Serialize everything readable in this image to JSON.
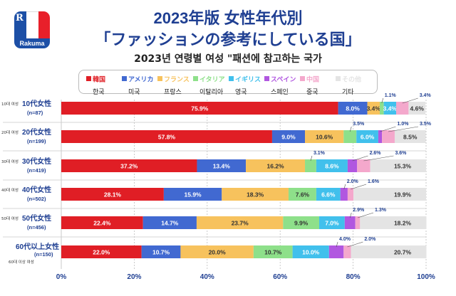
{
  "brand": {
    "logo_letter": "R",
    "name": "Rakuma"
  },
  "title_line1": "2023年版 女性年代別",
  "title_line2": "「ファッションの参考にしている国」",
  "title_korean": "2023년 연령별 여성 \"패션에 참고하는 국가",
  "colors": {
    "korea": "#e01e25",
    "usa": "#4169d1",
    "france": "#f7c25d",
    "italy": "#8ee08a",
    "uk": "#41c0ec",
    "spain": "#b157e0",
    "china": "#f4a8cc",
    "other": "#e4e4e4"
  },
  "chart_data": {
    "type": "bar",
    "orientation": "horizontal",
    "stacked": true,
    "xlim": [
      0,
      100
    ],
    "xticks": [
      "0%",
      "20%",
      "40%",
      "60%",
      "80%",
      "100%"
    ],
    "categories": [
      {
        "label": "10代女性",
        "n": "(n=87)",
        "korean": "10대 여성"
      },
      {
        "label": "20代女性",
        "n": "(n=199)",
        "korean": "20대 여성"
      },
      {
        "label": "30代女性",
        "n": "(n=419)",
        "korean": "30대 여성"
      },
      {
        "label": "40代女性",
        "n": "(n=502)",
        "korean": "40대 여성"
      },
      {
        "label": "50代女性",
        "n": "(n=456)",
        "korean": "50대 여성"
      },
      {
        "label": "60代以上女性",
        "n": "(n=150)",
        "korean": "60대 이상 여성"
      }
    ],
    "series": [
      {
        "key": "korea",
        "name": "韓国",
        "korean": "한국",
        "values": [
          75.9,
          57.8,
          37.2,
          28.1,
          22.4,
          22.0
        ],
        "labels": [
          "75.9%",
          "57.8%",
          "37.2%",
          "28.1%",
          "22.4%",
          "22.0%"
        ]
      },
      {
        "key": "usa",
        "name": "アメリカ",
        "korean": "미국",
        "values": [
          8.0,
          9.0,
          13.4,
          15.9,
          14.7,
          10.7
        ],
        "labels": [
          "8.0%",
          "9.0%",
          "13.4%",
          "15.9%",
          "14.7%",
          "10.7%"
        ]
      },
      {
        "key": "france",
        "name": "フランス",
        "korean": "프랑스",
        "values": [
          3.4,
          10.6,
          16.2,
          18.3,
          23.7,
          20.0
        ],
        "labels": [
          "3.4%",
          "10.6%",
          "16.2%",
          "18.3%",
          "23.7%",
          "20.0%"
        ]
      },
      {
        "key": "italy",
        "name": "イタリア",
        "korean": "이탈리아",
        "values": [
          1.1,
          3.5,
          3.1,
          7.6,
          9.9,
          10.7
        ],
        "labels": [
          "1.1%",
          "3.5%",
          "3.1%",
          "7.6%",
          "9.9%",
          "10.7%"
        ]
      },
      {
        "key": "uk",
        "name": "イギリス",
        "korean": "영국",
        "values": [
          3.4,
          6.0,
          8.6,
          6.6,
          7.0,
          10.0
        ],
        "labels": [
          "3.4%",
          "6.0%",
          "8.6%",
          "6.6%",
          "7.0%",
          "10.0%"
        ]
      },
      {
        "key": "spain",
        "name": "スペイン",
        "korean": "스페인",
        "values": [
          0.0,
          1.0,
          2.6,
          2.0,
          2.9,
          4.0
        ],
        "labels": [
          "",
          "1.0%",
          "2.6%",
          "2.0%",
          "2.9%",
          "4.0%"
        ]
      },
      {
        "key": "china",
        "name": "中国",
        "korean": "중국",
        "values": [
          3.4,
          3.5,
          3.6,
          1.6,
          1.3,
          2.0
        ],
        "labels": [
          "3.4%",
          "3.5%",
          "3.6%",
          "1.6%",
          "1.3%",
          "2.0%"
        ]
      },
      {
        "key": "other",
        "name": "その他",
        "korean": "기타",
        "values": [
          4.6,
          8.5,
          15.3,
          19.9,
          18.2,
          20.7
        ],
        "labels": [
          "4.6%",
          "8.5%",
          "15.3%",
          "19.9%",
          "18.2%",
          "20.7%"
        ]
      }
    ]
  }
}
